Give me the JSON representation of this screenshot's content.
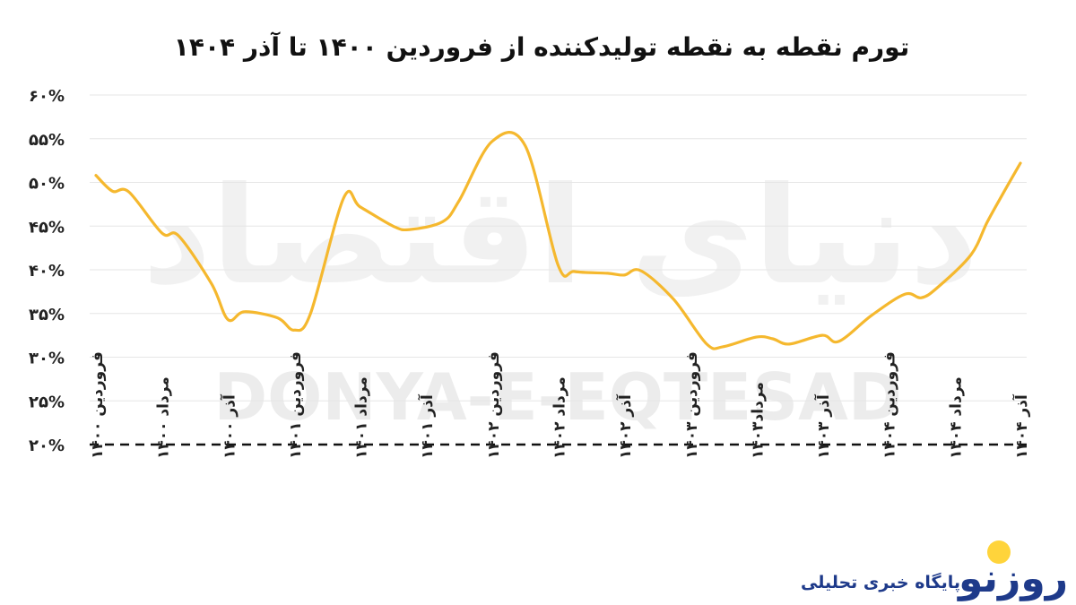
{
  "watermark": {
    "latin": "DONYA-E-EQTESAD",
    "arabic": "دنیای اقتصاد"
  },
  "logo": {
    "mark": "روزنو",
    "tagline": "پایگاه خبری تحلیلی"
  },
  "colors": {
    "line": "#F5B82E",
    "logo_dot": "#FFD43B",
    "logo_text": "#1e3a8a"
  },
  "chart_data": {
    "type": "line",
    "title": "تورم نقطه به نقطه تولیدکننده از فروردین ۱۴۰۰ تا آذر ۱۴۰۴",
    "xlabel": "",
    "ylabel": "",
    "ylim": [
      20,
      60
    ],
    "yticks": [
      20,
      25,
      30,
      35,
      40,
      45,
      50,
      55,
      60
    ],
    "ytick_labels": [
      "۲۰%",
      "۲۵%",
      "۳۰%",
      "۳۵%",
      "۴۰%",
      "۴۵%",
      "۵۰%",
      "۵۵%",
      "۶۰%"
    ],
    "grid": true,
    "legend": "none",
    "x_tick_labels": [
      {
        "index": 0,
        "label": "فروردین ۱۴۰۰"
      },
      {
        "index": 4,
        "label": "مرداد ۱۴۰۰"
      },
      {
        "index": 8,
        "label": "آذر ۱۴۰۰"
      },
      {
        "index": 12,
        "label": "فروردین ۱۴۰۱"
      },
      {
        "index": 16,
        "label": "مرداد ۱۴۰۱"
      },
      {
        "index": 20,
        "label": "آذر ۱۴۰۱"
      },
      {
        "index": 24,
        "label": "فروردین ۱۴۰۲"
      },
      {
        "index": 28,
        "label": "مرداد ۱۴۰۲"
      },
      {
        "index": 32,
        "label": "آذر ۱۴۰۲"
      },
      {
        "index": 36,
        "label": "فروردین ۱۴۰۳"
      },
      {
        "index": 40,
        "label": "مرداد۱۴۰۳"
      },
      {
        "index": 44,
        "label": "آذر ۱۴۰۳"
      },
      {
        "index": 48,
        "label": "فروردین ۱۴۰۴"
      },
      {
        "index": 52,
        "label": "مرداد ۱۴۰۴"
      },
      {
        "index": 56,
        "label": "آذر ۱۴۰۴"
      }
    ],
    "series": [
      {
        "values": [
          50.8,
          49.0,
          48.9,
          44.2,
          43.9,
          38.4,
          34.3,
          35.2,
          34.5,
          33.1,
          35.0,
          48.2,
          47.2,
          45.0,
          44.6,
          45.5,
          47.9,
          54.7,
          54.2,
          40.5,
          39.8,
          39.6,
          39.4,
          39.9,
          36.6,
          31.5,
          31.2,
          32.3,
          32.1,
          31.5,
          32.5,
          31.8,
          34.8,
          37.2,
          36.8,
          38.0,
          41.7,
          45.5,
          48.9,
          52.2
        ]
      }
    ],
    "x_index_of_point": [
      0,
      1,
      2,
      4,
      5,
      7,
      8,
      9,
      11,
      12,
      13,
      15,
      16,
      18,
      19,
      21,
      22,
      24,
      26,
      28,
      29,
      31,
      32,
      33,
      35,
      37,
      38,
      40,
      41,
      42,
      44,
      45,
      47,
      49,
      50,
      51,
      53,
      54,
      55,
      56
    ]
  }
}
